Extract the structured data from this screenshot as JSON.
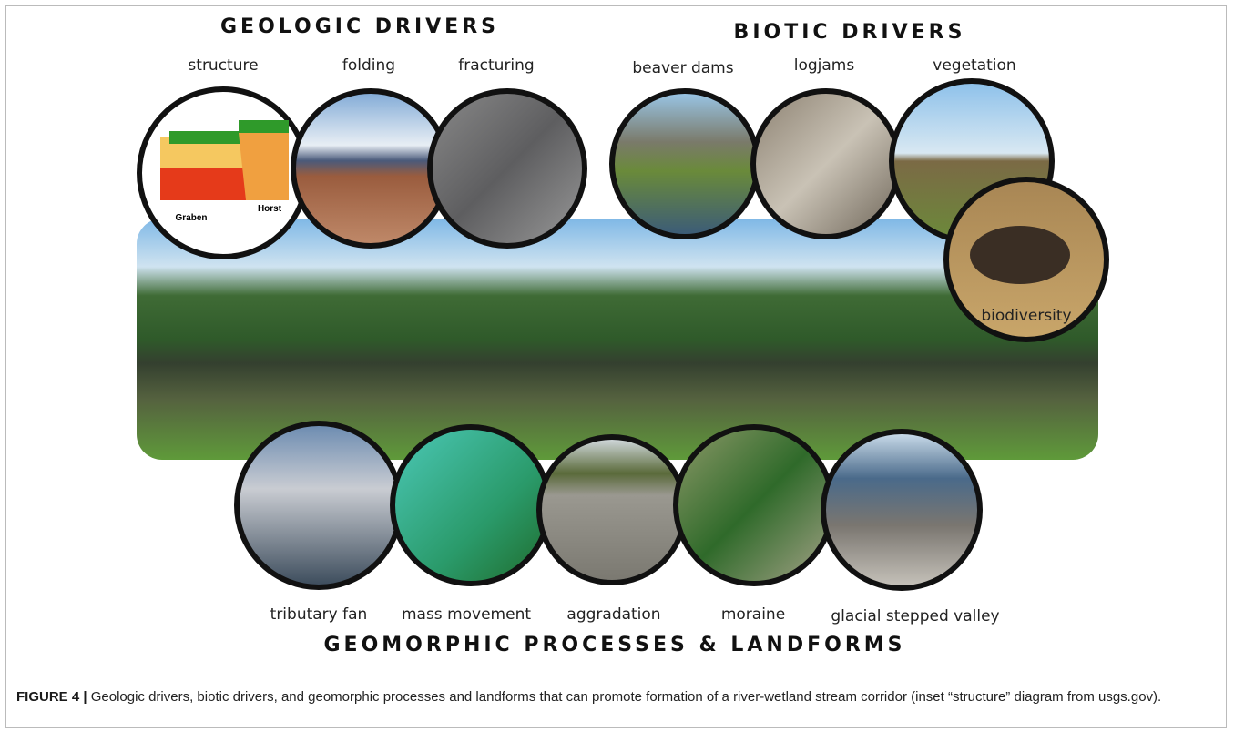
{
  "figure": {
    "groups": [
      {
        "title": "GEOLOGIC DRIVERS",
        "items": [
          "structure",
          "folding",
          "fracturing"
        ]
      },
      {
        "title": "BIOTIC DRIVERS",
        "items": [
          "beaver dams",
          "logjams",
          "vegetation",
          "biodiversity"
        ]
      },
      {
        "title": "GEOMORPHIC PROCESSES & LANDFORMS",
        "items": [
          "tributary fan",
          "mass movement",
          "aggradation",
          "moraine",
          "glacial stepped valley"
        ]
      }
    ],
    "inset_labels": [
      "Graben",
      "Horst"
    ],
    "caption": {
      "label": "FIGURE 4 |",
      "text": "Geologic drivers, biotic drivers, and geomorphic processes and landforms that can promote formation of a river-wetland stream corridor (inset “structure” diagram from usgs.gov)."
    }
  }
}
